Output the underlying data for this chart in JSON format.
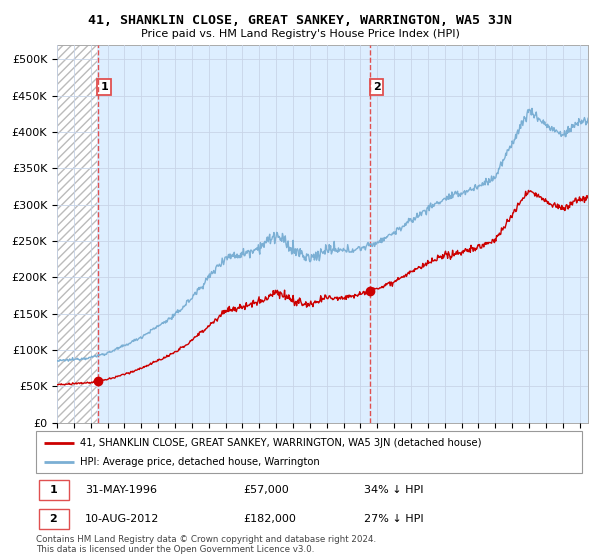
{
  "title": "41, SHANKLIN CLOSE, GREAT SANKEY, WARRINGTON, WA5 3JN",
  "subtitle": "Price paid vs. HM Land Registry's House Price Index (HPI)",
  "legend_line1": "41, SHANKLIN CLOSE, GREAT SANKEY, WARRINGTON, WA5 3JN (detached house)",
  "legend_line2": "HPI: Average price, detached house, Warrington",
  "footer": "Contains HM Land Registry data © Crown copyright and database right 2024.\nThis data is licensed under the Open Government Licence v3.0.",
  "sale1_note_col1": "31-MAY-1996",
  "sale1_note_col2": "£57,000",
  "sale1_note_col3": "34% ↓ HPI",
  "sale2_note_col1": "10-AUG-2012",
  "sale2_note_col2": "£182,000",
  "sale2_note_col3": "27% ↓ HPI",
  "sale1_price": 57000,
  "sale2_price": 182000,
  "sale1_time": 1996.416,
  "sale2_time": 2012.583,
  "sale_color": "#cc0000",
  "hpi_color": "#7bafd4",
  "bg_color": "#ddeeff",
  "vline_color": "#e05050",
  "ylim_min": 0,
  "ylim_max": 520000,
  "xmin": 1994.0,
  "xmax": 2025.5,
  "hpi_years": [
    1994,
    1995,
    1996,
    1997,
    1998,
    1999,
    2000,
    2001,
    2002,
    2003,
    2004,
    2005,
    2006,
    2007,
    2008,
    2009,
    2010,
    2011,
    2012,
    2013,
    2014,
    2015,
    2016,
    2017,
    2018,
    2019,
    2020,
    2021,
    2022,
    2023,
    2024,
    2025
  ],
  "hpi_vals": [
    85000,
    87000,
    90000,
    96000,
    106000,
    118000,
    133000,
    148000,
    172000,
    200000,
    228000,
    232000,
    242000,
    258000,
    238000,
    225000,
    238000,
    236000,
    240000,
    248000,
    262000,
    278000,
    295000,
    308000,
    316000,
    325000,
    338000,
    385000,
    430000,
    410000,
    395000,
    415000
  ]
}
